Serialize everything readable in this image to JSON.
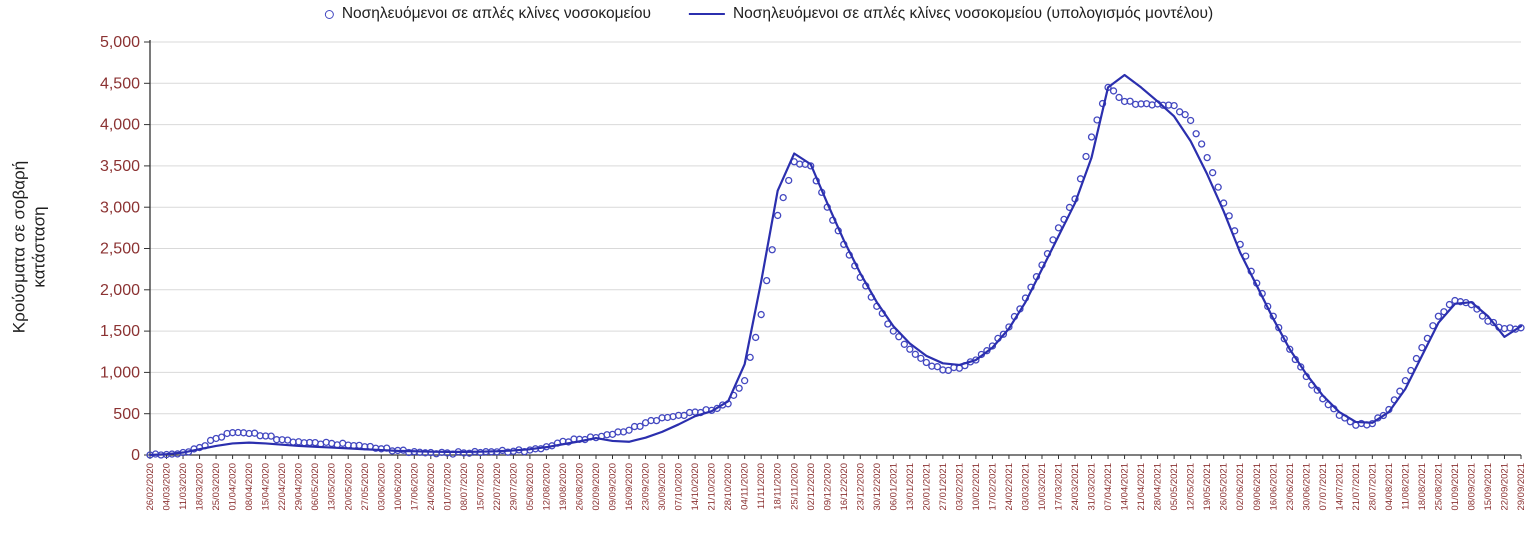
{
  "style": {
    "background": "#ffffff",
    "tick_label_color": "#8b3232",
    "axis_color": "#333333",
    "grid_color": "#d9d9d9",
    "text_color": "#1f1f1f"
  },
  "chart_data": {
    "type": "line",
    "title": "",
    "xlabel": "",
    "ylabel": "Κρούσματα σε σοβαρή κατάσταση",
    "ylim": [
      0,
      5000
    ],
    "ytick_step": 500,
    "y_tick_labels": [
      "0",
      "500",
      "1,000",
      "1,500",
      "2,000",
      "2,500",
      "3,000",
      "3,500",
      "4,000",
      "4,500",
      "5,000"
    ],
    "grid": "horizontal",
    "legend_position": "top-center",
    "categories": [
      "26/02/2020",
      "04/03/2020",
      "11/03/2020",
      "18/03/2020",
      "25/03/2020",
      "01/04/2020",
      "08/04/2020",
      "15/04/2020",
      "22/04/2020",
      "29/04/2020",
      "06/05/2020",
      "13/05/2020",
      "20/05/2020",
      "27/05/2020",
      "03/06/2020",
      "10/06/2020",
      "17/06/2020",
      "24/06/2020",
      "01/07/2020",
      "08/07/2020",
      "15/07/2020",
      "22/07/2020",
      "29/07/2020",
      "05/08/2020",
      "12/08/2020",
      "19/08/2020",
      "26/08/2020",
      "02/09/2020",
      "09/09/2020",
      "16/09/2020",
      "23/09/2020",
      "30/09/2020",
      "07/10/2020",
      "14/10/2020",
      "21/10/2020",
      "28/10/2020",
      "04/11/2020",
      "11/11/2020",
      "18/11/2020",
      "25/11/2020",
      "02/12/2020",
      "09/12/2020",
      "16/12/2020",
      "23/12/2020",
      "30/12/2020",
      "06/01/2021",
      "13/01/2021",
      "20/01/2021",
      "27/01/2021",
      "03/02/2021",
      "10/02/2021",
      "17/02/2021",
      "24/02/2021",
      "03/03/2021",
      "10/03/2021",
      "17/03/2021",
      "24/03/2021",
      "31/03/2021",
      "07/04/2021",
      "14/04/2021",
      "21/04/2021",
      "28/04/2021",
      "05/05/2021",
      "12/05/2021",
      "19/05/2021",
      "26/05/2021",
      "02/06/2021",
      "09/06/2021",
      "16/06/2021",
      "23/06/2021",
      "30/06/2021",
      "07/07/2021",
      "14/07/2021",
      "21/07/2021",
      "28/07/2021",
      "04/08/2021",
      "11/08/2021",
      "18/08/2021",
      "25/08/2021",
      "01/09/2021",
      "08/09/2021",
      "15/09/2021",
      "22/09/2021",
      "29/09/2021"
    ],
    "series": [
      {
        "name": "Νοσηλευόμενοι σε απλές κλίνες νοσοκομείου",
        "mode": "markers",
        "marker": "open-circle",
        "color": "#4348c0",
        "values": [
          0,
          5,
          30,
          90,
          200,
          270,
          260,
          230,
          185,
          160,
          150,
          140,
          120,
          100,
          75,
          55,
          40,
          30,
          25,
          25,
          30,
          38,
          45,
          60,
          100,
          165,
          190,
          210,
          250,
          300,
          390,
          450,
          480,
          520,
          540,
          620,
          900,
          1700,
          2900,
          3550,
          3500,
          3000,
          2550,
          2150,
          1800,
          1500,
          1280,
          1120,
          1030,
          1050,
          1150,
          1320,
          1550,
          1900,
          2300,
          2750,
          3100,
          3850,
          4450,
          4280,
          4250,
          4250,
          4230,
          4050,
          3600,
          3050,
          2550,
          2080,
          1680,
          1280,
          950,
          680,
          480,
          360,
          380,
          550,
          900,
          1300,
          1680,
          1870,
          1820,
          1620,
          1530,
          1540
        ]
      },
      {
        "name": "Νοσηλευόμενοι σε απλές κλίνες νοσοκομείου (υπολογισμός μοντέλου)",
        "mode": "line",
        "color": "#2b2fae",
        "values": [
          0,
          10,
          30,
          70,
          110,
          140,
          150,
          140,
          125,
          110,
          100,
          90,
          80,
          70,
          60,
          50,
          45,
          40,
          38,
          38,
          40,
          45,
          55,
          70,
          95,
          130,
          165,
          205,
          170,
          160,
          210,
          280,
          370,
          470,
          530,
          650,
          1100,
          2100,
          3200,
          3650,
          3520,
          3050,
          2600,
          2200,
          1850,
          1560,
          1350,
          1200,
          1110,
          1090,
          1150,
          1300,
          1530,
          1850,
          2250,
          2650,
          3050,
          3600,
          4450,
          4600,
          4450,
          4280,
          4100,
          3800,
          3400,
          2950,
          2450,
          2050,
          1650,
          1280,
          980,
          720,
          520,
          400,
          390,
          520,
          800,
          1200,
          1600,
          1830,
          1850,
          1680,
          1430,
          1560
        ]
      }
    ]
  }
}
